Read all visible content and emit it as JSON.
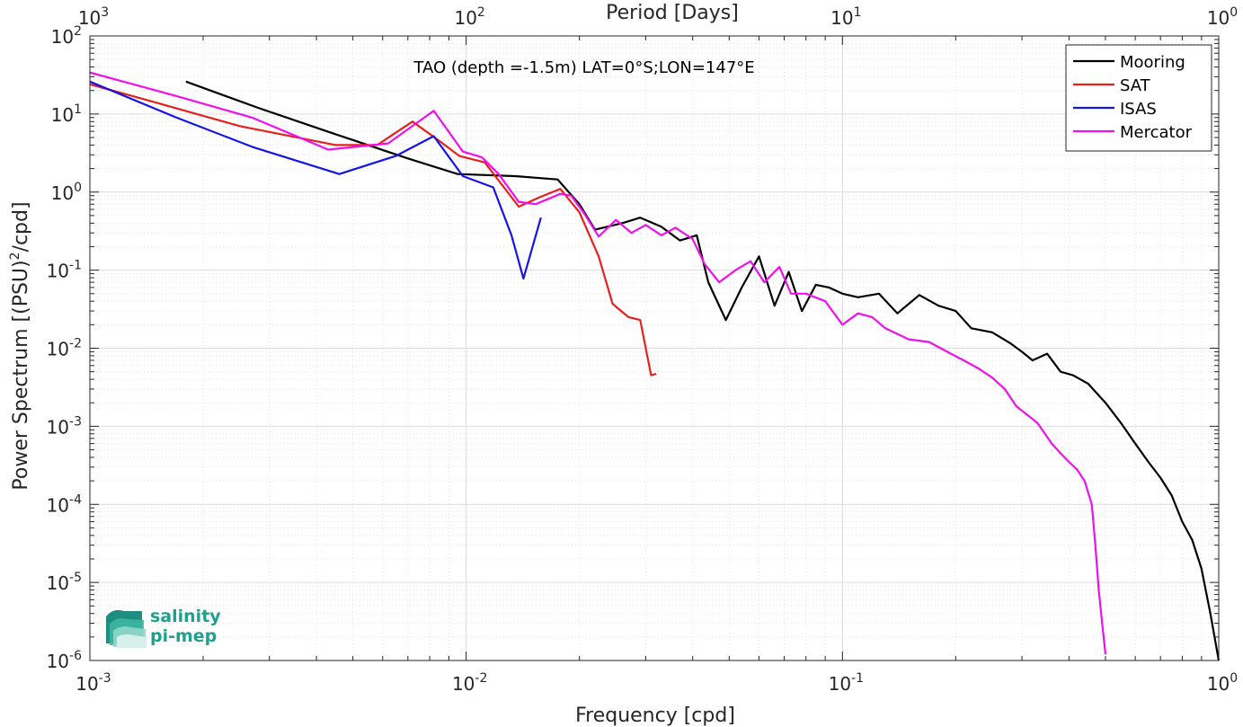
{
  "chart_data": {
    "type": "line",
    "title": "TAO (depth =-1.5m) LAT=0°S;LON=147°E",
    "xlabel": "Frequency [cpd]",
    "ylabel_main": "Power Spectrum [(PSU)",
    "ylabel_sup": "2",
    "ylabel_tail": "/cpd]",
    "top_xlabel": "Period [Days]",
    "xscale": "log",
    "yscale": "log",
    "xlim": [
      0.001,
      1
    ],
    "ylim": [
      1e-06,
      100
    ],
    "grid": true,
    "legend_position": "top-right",
    "x_ticks": [
      {
        "value": 0.001,
        "base": "10",
        "exp": "-3"
      },
      {
        "value": 0.01,
        "base": "10",
        "exp": "-2"
      },
      {
        "value": 0.1,
        "base": "10",
        "exp": "-1"
      },
      {
        "value": 1,
        "base": "10",
        "exp": "0"
      }
    ],
    "y_ticks": [
      {
        "value": 1e-06,
        "base": "10",
        "exp": "-6"
      },
      {
        "value": 1e-05,
        "base": "10",
        "exp": "-5"
      },
      {
        "value": 0.0001,
        "base": "10",
        "exp": "-4"
      },
      {
        "value": 0.001,
        "base": "10",
        "exp": "-3"
      },
      {
        "value": 0.01,
        "base": "10",
        "exp": "-2"
      },
      {
        "value": 0.1,
        "base": "10",
        "exp": "-1"
      },
      {
        "value": 1,
        "base": "10",
        "exp": "0"
      },
      {
        "value": 10,
        "base": "10",
        "exp": "1"
      },
      {
        "value": 100,
        "base": "10",
        "exp": "2"
      }
    ],
    "top_ticks": [
      {
        "period": 1000,
        "base": "10",
        "exp": "3"
      },
      {
        "period": 100,
        "base": "10",
        "exp": "2"
      },
      {
        "period": 10,
        "base": "10",
        "exp": "1"
      },
      {
        "period": 1,
        "base": "10",
        "exp": "0"
      }
    ],
    "series": [
      {
        "name": "Mooring",
        "color": "#000000",
        "points": [
          [
            0.0018,
            26
          ],
          [
            0.0028,
            12
          ],
          [
            0.0045,
            5.5
          ],
          [
            0.007,
            2.7
          ],
          [
            0.0095,
            1.7
          ],
          [
            0.0135,
            1.6
          ],
          [
            0.0175,
            1.45
          ],
          [
            0.02,
            0.7
          ],
          [
            0.022,
            0.33
          ],
          [
            0.026,
            0.4
          ],
          [
            0.029,
            0.47
          ],
          [
            0.033,
            0.36
          ],
          [
            0.037,
            0.24
          ],
          [
            0.041,
            0.28
          ],
          [
            0.044,
            0.07
          ],
          [
            0.049,
            0.023
          ],
          [
            0.054,
            0.06
          ],
          [
            0.06,
            0.15
          ],
          [
            0.066,
            0.035
          ],
          [
            0.072,
            0.095
          ],
          [
            0.078,
            0.03
          ],
          [
            0.085,
            0.065
          ],
          [
            0.092,
            0.06
          ],
          [
            0.1,
            0.05
          ],
          [
            0.11,
            0.045
          ],
          [
            0.125,
            0.05
          ],
          [
            0.14,
            0.028
          ],
          [
            0.16,
            0.048
          ],
          [
            0.18,
            0.035
          ],
          [
            0.2,
            0.03
          ],
          [
            0.22,
            0.018
          ],
          [
            0.25,
            0.016
          ],
          [
            0.28,
            0.0115
          ],
          [
            0.3,
            0.009
          ],
          [
            0.32,
            0.007
          ],
          [
            0.35,
            0.0085
          ],
          [
            0.38,
            0.005
          ],
          [
            0.41,
            0.0045
          ],
          [
            0.45,
            0.0035
          ],
          [
            0.5,
            0.002
          ],
          [
            0.55,
            0.0011
          ],
          [
            0.6,
            0.0006
          ],
          [
            0.65,
            0.00035
          ],
          [
            0.7,
            0.00022
          ],
          [
            0.75,
            0.00013
          ],
          [
            0.8,
            6e-05
          ],
          [
            0.85,
            3.5e-05
          ],
          [
            0.9,
            1.5e-05
          ],
          [
            0.95,
            4e-06
          ],
          [
            1.0,
            1e-06
          ]
        ]
      },
      {
        "name": "SAT",
        "color": "#e8201c",
        "points": [
          [
            0.001,
            24
          ],
          [
            0.0015,
            14
          ],
          [
            0.0025,
            7
          ],
          [
            0.0045,
            4
          ],
          [
            0.0058,
            4
          ],
          [
            0.0072,
            8
          ],
          [
            0.0085,
            4.5
          ],
          [
            0.0096,
            2.9
          ],
          [
            0.0112,
            2.4
          ],
          [
            0.0138,
            0.65
          ],
          [
            0.0156,
            0.85
          ],
          [
            0.0178,
            1.1
          ],
          [
            0.02,
            0.55
          ],
          [
            0.0225,
            0.15
          ],
          [
            0.0245,
            0.037
          ],
          [
            0.027,
            0.025
          ],
          [
            0.029,
            0.023
          ],
          [
            0.031,
            0.0045
          ],
          [
            0.032,
            0.0047
          ]
        ]
      },
      {
        "name": "ISAS",
        "color": "#1414e6",
        "points": [
          [
            0.001,
            26
          ],
          [
            0.0017,
            9
          ],
          [
            0.0027,
            3.8
          ],
          [
            0.0046,
            1.7
          ],
          [
            0.0065,
            2.9
          ],
          [
            0.0082,
            5.2
          ],
          [
            0.0098,
            1.6
          ],
          [
            0.0118,
            1.15
          ],
          [
            0.0132,
            0.28
          ],
          [
            0.0142,
            0.078
          ],
          [
            0.0158,
            0.47
          ]
        ]
      },
      {
        "name": "Mercator",
        "color": "#ee10ee",
        "points": [
          [
            0.001,
            34
          ],
          [
            0.0017,
            17
          ],
          [
            0.0027,
            9
          ],
          [
            0.0043,
            3.5
          ],
          [
            0.0062,
            4.2
          ],
          [
            0.0082,
            11
          ],
          [
            0.0098,
            3.3
          ],
          [
            0.011,
            2.8
          ],
          [
            0.0122,
            1.7
          ],
          [
            0.0138,
            0.75
          ],
          [
            0.0153,
            0.7
          ],
          [
            0.0178,
            0.95
          ],
          [
            0.019,
            0.9
          ],
          [
            0.0205,
            0.55
          ],
          [
            0.0225,
            0.27
          ],
          [
            0.025,
            0.44
          ],
          [
            0.0275,
            0.3
          ],
          [
            0.03,
            0.38
          ],
          [
            0.033,
            0.28
          ],
          [
            0.036,
            0.35
          ],
          [
            0.04,
            0.25
          ],
          [
            0.043,
            0.12
          ],
          [
            0.047,
            0.07
          ],
          [
            0.052,
            0.1
          ],
          [
            0.057,
            0.13
          ],
          [
            0.062,
            0.07
          ],
          [
            0.068,
            0.11
          ],
          [
            0.073,
            0.05
          ],
          [
            0.08,
            0.05
          ],
          [
            0.09,
            0.04
          ],
          [
            0.1,
            0.02
          ],
          [
            0.11,
            0.028
          ],
          [
            0.12,
            0.025
          ],
          [
            0.13,
            0.018
          ],
          [
            0.15,
            0.013
          ],
          [
            0.17,
            0.012
          ],
          [
            0.19,
            0.009
          ],
          [
            0.21,
            0.007
          ],
          [
            0.23,
            0.0055
          ],
          [
            0.25,
            0.0042
          ],
          [
            0.27,
            0.003
          ],
          [
            0.29,
            0.0018
          ],
          [
            0.31,
            0.0014
          ],
          [
            0.33,
            0.0011
          ],
          [
            0.36,
            0.0006
          ],
          [
            0.38,
            0.00045
          ],
          [
            0.4,
            0.00035
          ],
          [
            0.42,
            0.00028
          ],
          [
            0.44,
            0.0002
          ],
          [
            0.46,
            0.0001
          ],
          [
            0.47,
            3e-05
          ],
          [
            0.48,
            8e-06
          ],
          [
            0.49,
            3e-06
          ],
          [
            0.5,
            1.2e-06
          ]
        ]
      }
    ]
  },
  "logo": {
    "line1": "salinity",
    "line2": "pi-mep"
  }
}
